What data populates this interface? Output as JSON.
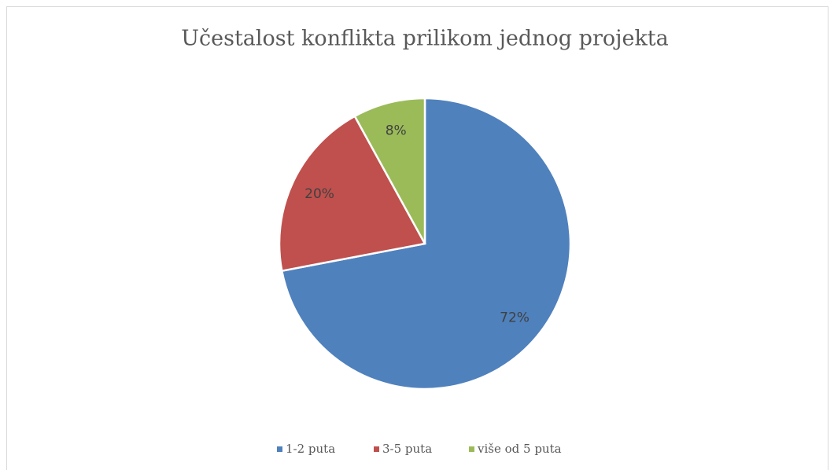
{
  "chart_data": {
    "type": "pie",
    "title": "Učestalost konflikta prilikom jednog projekta",
    "categories": [
      "1-2 puta",
      "3-5 puta",
      "više od 5 puta"
    ],
    "values": [
      72,
      20,
      8
    ],
    "value_labels": [
      "72%",
      "20%",
      "8%"
    ],
    "colors": [
      "#4f81bd",
      "#c0504d",
      "#9bbb59"
    ],
    "legend": "bottom"
  }
}
